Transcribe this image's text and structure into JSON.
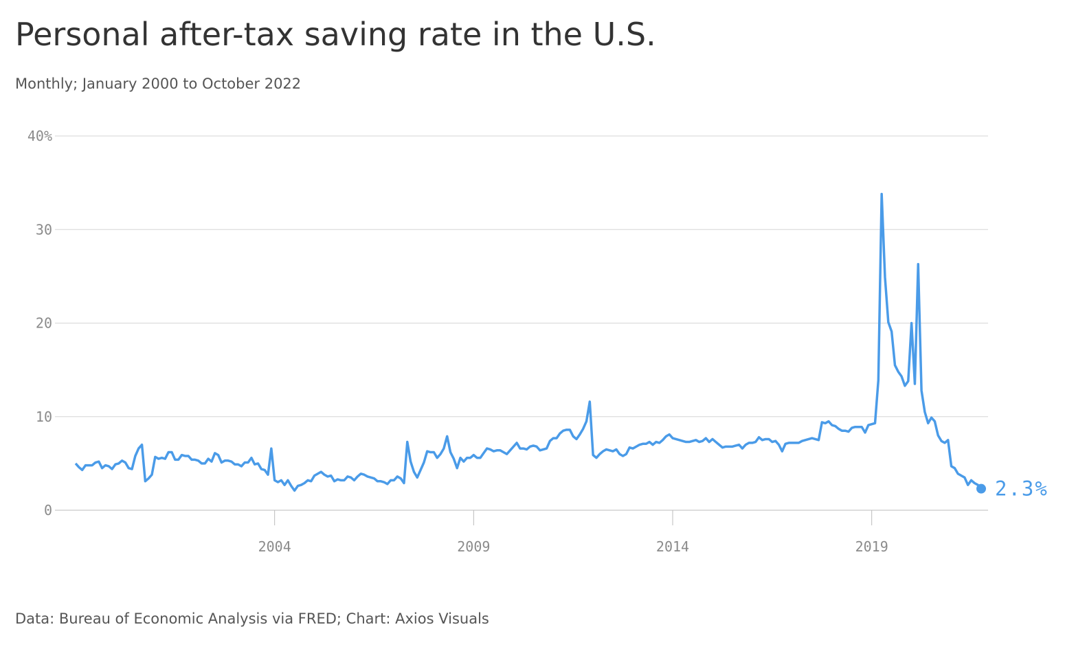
{
  "chart_data": {
    "type": "line",
    "title": "Personal after-tax saving rate in the U.S.",
    "subtitle": "Monthly; January 2000 to October 2022",
    "source": "Data: Bureau of Economic Analysis via FRED; Chart: Axios Visuals",
    "x": [
      "2000-01",
      "2000-02",
      "2000-03",
      "2000-04",
      "2000-05",
      "2000-06",
      "2000-07",
      "2000-08",
      "2000-09",
      "2000-10",
      "2000-11",
      "2000-12",
      "2001-01",
      "2001-02",
      "2001-03",
      "2001-04",
      "2001-05",
      "2001-06",
      "2001-07",
      "2001-08",
      "2001-09",
      "2001-10",
      "2001-11",
      "2001-12",
      "2002-01",
      "2002-02",
      "2002-03",
      "2002-04",
      "2002-05",
      "2002-06",
      "2002-07",
      "2002-08",
      "2002-09",
      "2002-10",
      "2002-11",
      "2002-12",
      "2003-01",
      "2003-02",
      "2003-03",
      "2003-04",
      "2003-05",
      "2003-06",
      "2003-07",
      "2003-08",
      "2003-09",
      "2003-10",
      "2003-11",
      "2003-12",
      "2004-01",
      "2004-02",
      "2004-03",
      "2004-04",
      "2004-05",
      "2004-06",
      "2004-07",
      "2004-08",
      "2004-09",
      "2004-10",
      "2004-11",
      "2004-12",
      "2005-01",
      "2005-02",
      "2005-03",
      "2005-04",
      "2005-05",
      "2005-06",
      "2005-07",
      "2005-08",
      "2005-09",
      "2005-10",
      "2005-11",
      "2005-12",
      "2006-01",
      "2006-02",
      "2006-03",
      "2006-04",
      "2006-05",
      "2006-06",
      "2006-07",
      "2006-08",
      "2006-09",
      "2006-10",
      "2006-11",
      "2006-12",
      "2007-01",
      "2007-02",
      "2007-03",
      "2007-04",
      "2007-05",
      "2007-06",
      "2007-07",
      "2007-08",
      "2007-09",
      "2007-10",
      "2007-11",
      "2007-12",
      "2008-01",
      "2008-02",
      "2008-03",
      "2008-04",
      "2008-05",
      "2008-06",
      "2008-07",
      "2008-08",
      "2008-09",
      "2008-10",
      "2008-11",
      "2008-12",
      "2009-01",
      "2009-02",
      "2009-03",
      "2009-04",
      "2009-05",
      "2009-06",
      "2009-07",
      "2009-08",
      "2009-09",
      "2009-10",
      "2009-11",
      "2009-12",
      "2010-01",
      "2010-02",
      "2010-03",
      "2010-04",
      "2010-05",
      "2010-06",
      "2010-07",
      "2010-08",
      "2010-09",
      "2010-10",
      "2010-11",
      "2010-12",
      "2011-01",
      "2011-02",
      "2011-03",
      "2011-04",
      "2011-05",
      "2011-06",
      "2011-07",
      "2011-08",
      "2011-09",
      "2011-10",
      "2011-11",
      "2011-12",
      "2012-01",
      "2012-02",
      "2012-03",
      "2012-04",
      "2012-05",
      "2012-06",
      "2012-07",
      "2012-08",
      "2012-09",
      "2012-10",
      "2012-11",
      "2012-12",
      "2013-01",
      "2013-02",
      "2013-03",
      "2013-04",
      "2013-05",
      "2013-06",
      "2013-07",
      "2013-08",
      "2013-09",
      "2013-10",
      "2013-11",
      "2013-12",
      "2014-01",
      "2014-02",
      "2014-03",
      "2014-04",
      "2014-05",
      "2014-06",
      "2014-07",
      "2014-08",
      "2014-09",
      "2014-10",
      "2014-11",
      "2014-12",
      "2015-01",
      "2015-02",
      "2015-03",
      "2015-04",
      "2015-05",
      "2015-06",
      "2015-07",
      "2015-08",
      "2015-09",
      "2015-10",
      "2015-11",
      "2015-12",
      "2016-01",
      "2016-02",
      "2016-03",
      "2016-04",
      "2016-05",
      "2016-06",
      "2016-07",
      "2016-08",
      "2016-09",
      "2016-10",
      "2016-11",
      "2016-12",
      "2017-01",
      "2017-02",
      "2017-03",
      "2017-04",
      "2017-05",
      "2017-06",
      "2017-07",
      "2017-08",
      "2017-09",
      "2017-10",
      "2017-11",
      "2017-12",
      "2018-01",
      "2018-02",
      "2018-03",
      "2018-04",
      "2018-05",
      "2018-06",
      "2018-07",
      "2018-08",
      "2018-09",
      "2018-10",
      "2018-11",
      "2018-12",
      "2019-01",
      "2019-02",
      "2019-03",
      "2019-04",
      "2019-05",
      "2019-06",
      "2019-07",
      "2019-08",
      "2019-09",
      "2019-10",
      "2019-11",
      "2019-12",
      "2020-01",
      "2020-02",
      "2020-03",
      "2020-04",
      "2020-05",
      "2020-06",
      "2020-07",
      "2020-08",
      "2020-09",
      "2020-10",
      "2020-11",
      "2020-12",
      "2021-01",
      "2021-02",
      "2021-03",
      "2021-04",
      "2021-05",
      "2021-06",
      "2021-07",
      "2021-08",
      "2021-09",
      "2021-10",
      "2021-11",
      "2021-12",
      "2022-01",
      "2022-02",
      "2022-03",
      "2022-04",
      "2022-05",
      "2022-06",
      "2022-07",
      "2022-08",
      "2022-09",
      "2022-10"
    ],
    "series": [
      {
        "name": "Personal saving rate",
        "color": "#4a9be8",
        "values": [
          5.0,
          4.6,
          4.3,
          4.8,
          4.8,
          4.8,
          5.1,
          5.2,
          4.5,
          4.8,
          4.7,
          4.4,
          4.9,
          5.0,
          5.3,
          5.1,
          4.5,
          4.4,
          5.8,
          6.6,
          7.0,
          3.1,
          3.4,
          3.8,
          5.7,
          5.5,
          5.6,
          5.5,
          6.2,
          6.2,
          5.4,
          5.4,
          5.9,
          5.8,
          5.8,
          5.4,
          5.4,
          5.3,
          5.0,
          5.0,
          5.5,
          5.2,
          6.1,
          5.9,
          5.1,
          5.3,
          5.3,
          5.2,
          4.9,
          4.9,
          4.7,
          5.1,
          5.1,
          5.6,
          4.9,
          5.0,
          4.4,
          4.3,
          3.8,
          6.6,
          3.2,
          3.0,
          3.2,
          2.7,
          3.2,
          2.6,
          2.1,
          2.6,
          2.7,
          2.9,
          3.2,
          3.1,
          3.7,
          3.9,
          4.1,
          3.8,
          3.6,
          3.7,
          3.1,
          3.3,
          3.2,
          3.2,
          3.6,
          3.5,
          3.2,
          3.6,
          3.9,
          3.8,
          3.6,
          3.5,
          3.4,
          3.1,
          3.1,
          3.0,
          2.8,
          3.2,
          3.2,
          3.6,
          3.4,
          2.9,
          7.3,
          5.2,
          4.1,
          3.5,
          4.3,
          5.1,
          6.3,
          6.2,
          6.2,
          5.6,
          6.0,
          6.6,
          7.9,
          6.2,
          5.5,
          4.5,
          5.6,
          5.2,
          5.6,
          5.6,
          5.9,
          5.6,
          5.6,
          6.1,
          6.6,
          6.5,
          6.3,
          6.4,
          6.4,
          6.2,
          6.0,
          6.4,
          6.8,
          7.2,
          6.6,
          6.6,
          6.5,
          6.8,
          6.9,
          6.8,
          6.4,
          6.5,
          6.6,
          7.4,
          7.7,
          7.7,
          8.2,
          8.5,
          8.6,
          8.6,
          7.9,
          7.6,
          8.1,
          8.7,
          9.5,
          11.6,
          5.9,
          5.6,
          6.0,
          6.3,
          6.5,
          6.4,
          6.3,
          6.5,
          6.0,
          5.8,
          6.0,
          6.7,
          6.6,
          6.8,
          7.0,
          7.1,
          7.1,
          7.3,
          7.0,
          7.3,
          7.2,
          7.5,
          7.9,
          8.1,
          7.7,
          7.6,
          7.5,
          7.4,
          7.3,
          7.3,
          7.4,
          7.5,
          7.3,
          7.4,
          7.7,
          7.3,
          7.6,
          7.3,
          7.0,
          6.7,
          6.8,
          6.8,
          6.8,
          6.9,
          7.0,
          6.6,
          7.0,
          7.2,
          7.2,
          7.3,
          7.8,
          7.5,
          7.6,
          7.6,
          7.3,
          7.4,
          7.0,
          6.3,
          7.1,
          7.2,
          7.2,
          7.2,
          7.2,
          7.4,
          7.5,
          7.6,
          7.7,
          7.6,
          7.5,
          9.4,
          9.3,
          9.5,
          9.1,
          9.0,
          8.7,
          8.5,
          8.5,
          8.4,
          8.8,
          8.9,
          8.9,
          8.9,
          8.3,
          9.1,
          9.2,
          9.3,
          13.9,
          33.8,
          24.9,
          20.1,
          19.1,
          15.5,
          14.8,
          14.3,
          13.3,
          13.8,
          20.0,
          13.5,
          26.3,
          12.8,
          10.5,
          9.3,
          9.9,
          9.5,
          8.0,
          7.4,
          7.2,
          7.5,
          4.7,
          4.5,
          3.9,
          3.7,
          3.5,
          2.7,
          3.2,
          2.9,
          2.7,
          2.3
        ],
        "value_labels": [
          null,
          null,
          null,
          null,
          null,
          null,
          null,
          null,
          null,
          null,
          null,
          null,
          null,
          null,
          null,
          null,
          null,
          null,
          null,
          null,
          null,
          null,
          null,
          null,
          null,
          null,
          null,
          null,
          null,
          null,
          null,
          null,
          null,
          null,
          null,
          null,
          null,
          null,
          null,
          null,
          null,
          null,
          null,
          null,
          null,
          null,
          null,
          null,
          null,
          null,
          null,
          null,
          null,
          null,
          null,
          null,
          null,
          null,
          null,
          null,
          null,
          null,
          null,
          null,
          null,
          null,
          null,
          null,
          null,
          null,
          null,
          null,
          null,
          null,
          null,
          null,
          null,
          null,
          null,
          null,
          null,
          null,
          null,
          null,
          null,
          null,
          null,
          null,
          null,
          null,
          null,
          null,
          null,
          null,
          null,
          null,
          null,
          null,
          null,
          null,
          null,
          null,
          null,
          null,
          null,
          null,
          null,
          null,
          null,
          null,
          null,
          null,
          null,
          null,
          null,
          null,
          null,
          null,
          null,
          null,
          null,
          null,
          null,
          null,
          null,
          null,
          null,
          null,
          null,
          null,
          null,
          null,
          null,
          null,
          null,
          null,
          null,
          null,
          null,
          null,
          null,
          null,
          null,
          null,
          null,
          null,
          null,
          null,
          null,
          null,
          null,
          null,
          null,
          null,
          null,
          null,
          null,
          null,
          null,
          null,
          null,
          null,
          null,
          null,
          null,
          null,
          null,
          null,
          null,
          null,
          null,
          null,
          null,
          null,
          null,
          null,
          null,
          null,
          null,
          null,
          null,
          null,
          null,
          null,
          null,
          null,
          null,
          null,
          null,
          null,
          null,
          null,
          null,
          null,
          null,
          null,
          null,
          null,
          null,
          null,
          null,
          null,
          null,
          null,
          null,
          null,
          null,
          null,
          null,
          null,
          null,
          null,
          null,
          null,
          null,
          null,
          null,
          null,
          null,
          null,
          null,
          null,
          null,
          null,
          null,
          null,
          null,
          null,
          null,
          null,
          null,
          null,
          null,
          null,
          null,
          null,
          null,
          null,
          null,
          null,
          null,
          null,
          null,
          null,
          null,
          null,
          null,
          null,
          null,
          null,
          null,
          null,
          null,
          null,
          null,
          null,
          null,
          null,
          null,
          null,
          null,
          null,
          null,
          null,
          null,
          null,
          null,
          null,
          null,
          null,
          null,
          null,
          null,
          "2.3%"
        ]
      }
    ],
    "xlim": [
      "2000-01",
      "2022-10"
    ],
    "xticks": [
      {
        "value": "2005-01",
        "label": "2004"
      },
      {
        "value": "2010-01",
        "label": "2009"
      },
      {
        "value": "2015-01",
        "label": "2014"
      },
      {
        "value": "2020-01",
        "label": "2019"
      }
    ],
    "ylim": [
      0,
      40
    ],
    "yticks": [
      0,
      10,
      20,
      30,
      {
        "value": 40,
        "label": "40%"
      }
    ],
    "grid": true
  }
}
